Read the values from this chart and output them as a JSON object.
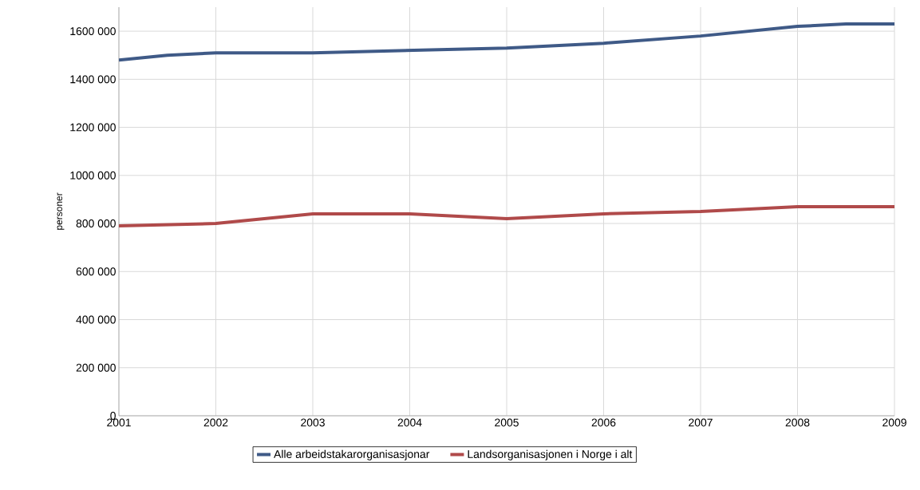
{
  "chart_data": {
    "type": "line",
    "ylabel": "personer",
    "xlim": [
      2001,
      2009
    ],
    "xticks": [
      2001,
      2002,
      2003,
      2004,
      2005,
      2006,
      2007,
      2008,
      2009
    ],
    "ylim": [
      0,
      1700000
    ],
    "yticks": [
      {
        "value": 0,
        "label": "0"
      },
      {
        "value": 200000,
        "label": "200 000"
      },
      {
        "value": 400000,
        "label": "400 000"
      },
      {
        "value": 600000,
        "label": "600 000"
      },
      {
        "value": 800000,
        "label": "800 000"
      },
      {
        "value": 1000000,
        "label": "1000 000"
      },
      {
        "value": 1200000,
        "label": "1200 000"
      },
      {
        "value": 1400000,
        "label": "1400 000"
      },
      {
        "value": 1600000,
        "label": "1600 000"
      }
    ],
    "grid": true,
    "legend": "bottom",
    "series": [
      {
        "name": "Alle arbeidstakarorganisasjonar",
        "color": "#3f5a87",
        "x": [
          2001,
          2001.5,
          2002,
          2003,
          2004,
          2005,
          2006,
          2007,
          2007.5,
          2008,
          2008.5,
          2009
        ],
        "values": [
          1480000,
          1500000,
          1510000,
          1510000,
          1520000,
          1530000,
          1550000,
          1580000,
          1600000,
          1620000,
          1630000,
          1630000
        ]
      },
      {
        "name": "Landsorganisasjonen i Norge i alt",
        "color": "#b04a4a",
        "x": [
          2001,
          2002,
          2002.5,
          2003,
          2003.5,
          2004,
          2004.5,
          2005,
          2005.5,
          2006,
          2007,
          2008,
          2009
        ],
        "values": [
          790000,
          800000,
          820000,
          840000,
          840000,
          840000,
          830000,
          820000,
          830000,
          840000,
          850000,
          870000,
          870000
        ]
      }
    ]
  }
}
